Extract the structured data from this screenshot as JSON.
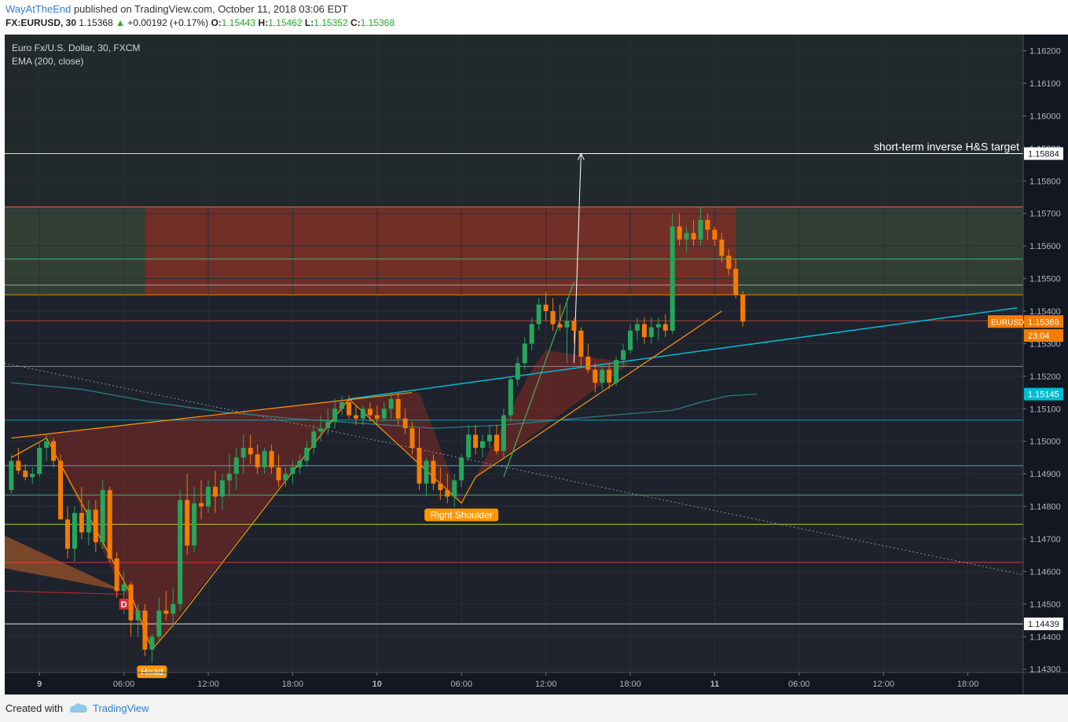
{
  "header": {
    "user": "WayAtTheEnd",
    "published": " published on TradingView.com, October 11, 2018 03:06 EDT",
    "symbol": "FX:EURUSD, 30",
    "last": "1.15368",
    "change": "+0.00192 (+0.17%)",
    "o_label": "O:",
    "o": "1.15443",
    "h_label": "H:",
    "h": "1.15462",
    "l_label": "L:",
    "l": "1.15352",
    "c_label": "C:",
    "c": "1.15368"
  },
  "legend": {
    "line1": "Euro Fx/U.S. Dollar, 30, FXCM",
    "line2": "EMA (200, close)"
  },
  "footer": {
    "created_with": "Created with",
    "brand": "TradingView"
  },
  "colors": {
    "background": "#1e222d",
    "up": "#26a65b",
    "down": "#f57c00",
    "ema": "#2e8b8b",
    "trend": "#00bcd4",
    "pattern": "#ff9800"
  },
  "chart_data": {
    "type": "candlestick",
    "title": "Euro Fx/U.S. Dollar, 30, FXCM",
    "indicator": "EMA (200, close)",
    "ylim": [
      1.1428,
      1.1624
    ],
    "yticks": [
      "1.14300",
      "1.14400",
      "1.14500",
      "1.14600",
      "1.14700",
      "1.14800",
      "1.14900",
      "1.15000",
      "1.15100",
      "1.15200",
      "1.15300",
      "1.15400",
      "1.15500",
      "1.15600",
      "1.15700",
      "1.15800",
      "1.15900",
      "1.16000",
      "1.16100",
      "1.16200"
    ],
    "xticks": [
      {
        "label": "9",
        "bar": 4,
        "bold": true
      },
      {
        "label": "06:00",
        "bar": 16
      },
      {
        "label": "12:00",
        "bar": 28
      },
      {
        "label": "18:00",
        "bar": 40
      },
      {
        "label": "10",
        "bar": 52,
        "bold": true
      },
      {
        "label": "06:00",
        "bar": 64
      },
      {
        "label": "12:00",
        "bar": 76
      },
      {
        "label": "18:00",
        "bar": 88
      },
      {
        "label": "11",
        "bar": 100,
        "bold": true
      },
      {
        "label": "06:00",
        "bar": 112
      },
      {
        "label": "12:00",
        "bar": 124
      },
      {
        "label": "18:00",
        "bar": 136
      }
    ],
    "horizontal_levels": [
      {
        "price": 1.15884,
        "color": "#ffffff",
        "label": "1.15884"
      },
      {
        "price": 1.1572,
        "color": "#ff6f4f"
      },
      {
        "price": 1.1556,
        "color": "#3ec97c"
      },
      {
        "price": 1.1548,
        "color": "#b0b0b0"
      },
      {
        "price": 1.1545,
        "color": "#ff9800"
      },
      {
        "price": 1.1537,
        "color": "#c0453a"
      },
      {
        "price": 1.1523,
        "color": "#9e9e9e"
      },
      {
        "price": 1.15065,
        "color": "#00bcd4"
      },
      {
        "price": 1.14925,
        "color": "#3ec9c0"
      },
      {
        "price": 1.14835,
        "color": "#3ec97c"
      },
      {
        "price": 1.14745,
        "color": "#c6e03a"
      },
      {
        "price": 1.14628,
        "color": "#f44336"
      },
      {
        "price": 1.14439,
        "color": "#ffffff",
        "label": "1.14439"
      }
    ],
    "price_labels": [
      {
        "text": "1.15368",
        "price": 1.15368,
        "bg": "#f57c00",
        "fg": "#ffffff"
      },
      {
        "text": "23:04",
        "price": 1.15325,
        "bg": "#f57c00",
        "fg": "#ffffff"
      },
      {
        "text": "1.15145",
        "price": 1.15145,
        "bg": "#00bcd4",
        "fg": "#ffffff"
      }
    ],
    "symbol_tag": "EURUSD",
    "annotations": {
      "target": "short-term inverse H&S target",
      "head": "Head",
      "right_shoulder": "Right Shoulder",
      "d_marker": "D"
    },
    "candles": [
      [
        1.1485,
        1.1496,
        1.1484,
        1.1494
      ],
      [
        1.1494,
        1.1498,
        1.149,
        1.1491
      ],
      [
        1.1491,
        1.1493,
        1.1488,
        1.1489
      ],
      [
        1.1489,
        1.1492,
        1.1487,
        1.149
      ],
      [
        1.149,
        1.15,
        1.1489,
        1.1498
      ],
      [
        1.1498,
        1.1502,
        1.1494,
        1.15
      ],
      [
        1.15,
        1.1501,
        1.1492,
        1.1494
      ],
      [
        1.1494,
        1.1496,
        1.1476,
        1.1476
      ],
      [
        1.1476,
        1.148,
        1.1464,
        1.1467
      ],
      [
        1.1467,
        1.148,
        1.1463,
        1.1478
      ],
      [
        1.1478,
        1.1486,
        1.147,
        1.1472
      ],
      [
        1.1472,
        1.1482,
        1.1468,
        1.1479
      ],
      [
        1.1479,
        1.1482,
        1.1466,
        1.1469
      ],
      [
        1.1469,
        1.1488,
        1.1467,
        1.1485
      ],
      [
        1.1485,
        1.1486,
        1.1463,
        1.1464
      ],
      [
        1.1464,
        1.1466,
        1.1452,
        1.1454
      ],
      [
        1.1454,
        1.146,
        1.1447,
        1.1456
      ],
      [
        1.1456,
        1.1457,
        1.144,
        1.1445
      ],
      [
        1.1445,
        1.145,
        1.144,
        1.1448
      ],
      [
        1.1448,
        1.145,
        1.1434,
        1.1436
      ],
      [
        1.1436,
        1.1441,
        1.1432,
        1.144
      ],
      [
        1.144,
        1.1452,
        1.1438,
        1.1448
      ],
      [
        1.1448,
        1.1454,
        1.1445,
        1.1447
      ],
      [
        1.1447,
        1.1455,
        1.1443,
        1.145
      ],
      [
        1.145,
        1.1485,
        1.1448,
        1.1482
      ],
      [
        1.1482,
        1.149,
        1.1465,
        1.1468
      ],
      [
        1.1468,
        1.1486,
        1.1466,
        1.1481
      ],
      [
        1.1481,
        1.1488,
        1.1476,
        1.148
      ],
      [
        1.148,
        1.1488,
        1.1478,
        1.1486
      ],
      [
        1.1486,
        1.1491,
        1.1478,
        1.1483
      ],
      [
        1.1483,
        1.149,
        1.1479,
        1.1488
      ],
      [
        1.1488,
        1.1496,
        1.1483,
        1.149
      ],
      [
        1.149,
        1.1498,
        1.1485,
        1.1495
      ],
      [
        1.1495,
        1.1502,
        1.149,
        1.1498
      ],
      [
        1.1498,
        1.1502,
        1.1493,
        1.1496
      ],
      [
        1.1496,
        1.1499,
        1.149,
        1.1492
      ],
      [
        1.1492,
        1.1498,
        1.149,
        1.1497
      ],
      [
        1.1497,
        1.1499,
        1.149,
        1.1492
      ],
      [
        1.1492,
        1.1496,
        1.1486,
        1.1488
      ],
      [
        1.1488,
        1.1492,
        1.1486,
        1.149
      ],
      [
        1.149,
        1.1494,
        1.1487,
        1.1492
      ],
      [
        1.1492,
        1.1496,
        1.149,
        1.1494
      ],
      [
        1.1494,
        1.15,
        1.1492,
        1.1498
      ],
      [
        1.1498,
        1.1505,
        1.1496,
        1.1503
      ],
      [
        1.1503,
        1.1508,
        1.15,
        1.1504
      ],
      [
        1.1504,
        1.151,
        1.1502,
        1.1506
      ],
      [
        1.1506,
        1.1513,
        1.1504,
        1.151
      ],
      [
        1.151,
        1.1514,
        1.1508,
        1.1512
      ],
      [
        1.1512,
        1.1514,
        1.1507,
        1.1508
      ],
      [
        1.1508,
        1.1511,
        1.1505,
        1.1507
      ],
      [
        1.1507,
        1.1511,
        1.1505,
        1.151
      ],
      [
        1.151,
        1.1512,
        1.1506,
        1.1508
      ],
      [
        1.1508,
        1.1511,
        1.1505,
        1.1507
      ],
      [
        1.1507,
        1.1512,
        1.1506,
        1.151
      ],
      [
        1.151,
        1.1515,
        1.1507,
        1.1513
      ],
      [
        1.1513,
        1.1515,
        1.1505,
        1.1507
      ],
      [
        1.1507,
        1.151,
        1.1502,
        1.1504
      ],
      [
        1.1504,
        1.1506,
        1.1496,
        1.1498
      ],
      [
        1.1498,
        1.1504,
        1.1485,
        1.1487
      ],
      [
        1.1487,
        1.1495,
        1.1483,
        1.1494
      ],
      [
        1.1494,
        1.1496,
        1.1485,
        1.1487
      ],
      [
        1.1487,
        1.1492,
        1.1482,
        1.1485
      ],
      [
        1.1485,
        1.149,
        1.1481,
        1.1483
      ],
      [
        1.1483,
        1.149,
        1.148,
        1.1488
      ],
      [
        1.1488,
        1.1496,
        1.1486,
        1.1495
      ],
      [
        1.1495,
        1.1505,
        1.1494,
        1.1502
      ],
      [
        1.1502,
        1.1505,
        1.1496,
        1.1498
      ],
      [
        1.1498,
        1.1502,
        1.1495,
        1.15
      ],
      [
        1.15,
        1.1505,
        1.1498,
        1.1502
      ],
      [
        1.1502,
        1.1505,
        1.1496,
        1.1497
      ],
      [
        1.1497,
        1.151,
        1.1495,
        1.1508
      ],
      [
        1.1508,
        1.152,
        1.1506,
        1.1519
      ],
      [
        1.1519,
        1.1526,
        1.1517,
        1.1524
      ],
      [
        1.1524,
        1.1532,
        1.1522,
        1.153
      ],
      [
        1.153,
        1.1538,
        1.1528,
        1.1536
      ],
      [
        1.1536,
        1.1544,
        1.1534,
        1.1542
      ],
      [
        1.1542,
        1.1546,
        1.1537,
        1.154
      ],
      [
        1.154,
        1.1544,
        1.1534,
        1.1536
      ],
      [
        1.1536,
        1.1542,
        1.1534,
        1.1535
      ],
      [
        1.1535,
        1.1544,
        1.1524,
        1.1537
      ],
      [
        1.1537,
        1.1538,
        1.153,
        1.1534
      ],
      [
        1.1534,
        1.1535,
        1.1523,
        1.1526
      ],
      [
        1.1526,
        1.153,
        1.1521,
        1.1522
      ],
      [
        1.1522,
        1.1524,
        1.1515,
        1.1518
      ],
      [
        1.1518,
        1.1523,
        1.1516,
        1.1522
      ],
      [
        1.1522,
        1.1524,
        1.1516,
        1.1518
      ],
      [
        1.1518,
        1.1526,
        1.1517,
        1.1525
      ],
      [
        1.1525,
        1.153,
        1.1523,
        1.1528
      ],
      [
        1.1528,
        1.1536,
        1.1527,
        1.1534
      ],
      [
        1.1534,
        1.1538,
        1.1531,
        1.1536
      ],
      [
        1.1536,
        1.1538,
        1.153,
        1.1532
      ],
      [
        1.1532,
        1.1538,
        1.153,
        1.1535
      ],
      [
        1.1535,
        1.1538,
        1.1531,
        1.1536
      ],
      [
        1.1536,
        1.1539,
        1.1532,
        1.1534
      ],
      [
        1.1534,
        1.157,
        1.1533,
        1.1566
      ],
      [
        1.1566,
        1.157,
        1.156,
        1.1562
      ],
      [
        1.1562,
        1.1566,
        1.1558,
        1.1564
      ],
      [
        1.1564,
        1.1568,
        1.156,
        1.1562
      ],
      [
        1.1562,
        1.1572,
        1.156,
        1.1568
      ],
      [
        1.1568,
        1.157,
        1.1562,
        1.1565
      ],
      [
        1.1565,
        1.1566,
        1.156,
        1.1562
      ],
      [
        1.1562,
        1.1564,
        1.1555,
        1.1557
      ],
      [
        1.1557,
        1.1559,
        1.1551,
        1.1553
      ],
      [
        1.1553,
        1.1556,
        1.1544,
        1.1545
      ],
      [
        1.1545,
        1.15462,
        1.15352,
        1.15368
      ]
    ],
    "ema": [
      [
        0,
        1.1518
      ],
      [
        10,
        1.1516
      ],
      [
        20,
        1.1512
      ],
      [
        30,
        1.1509
      ],
      [
        40,
        1.1507
      ],
      [
        50,
        1.15055
      ],
      [
        60,
        1.1504
      ],
      [
        70,
        1.1505
      ],
      [
        80,
        1.1507
      ],
      [
        88,
        1.15085
      ],
      [
        94,
        1.15095
      ],
      [
        98,
        1.1512
      ],
      [
        102,
        1.1514
      ],
      [
        106,
        1.15145
      ]
    ]
  }
}
